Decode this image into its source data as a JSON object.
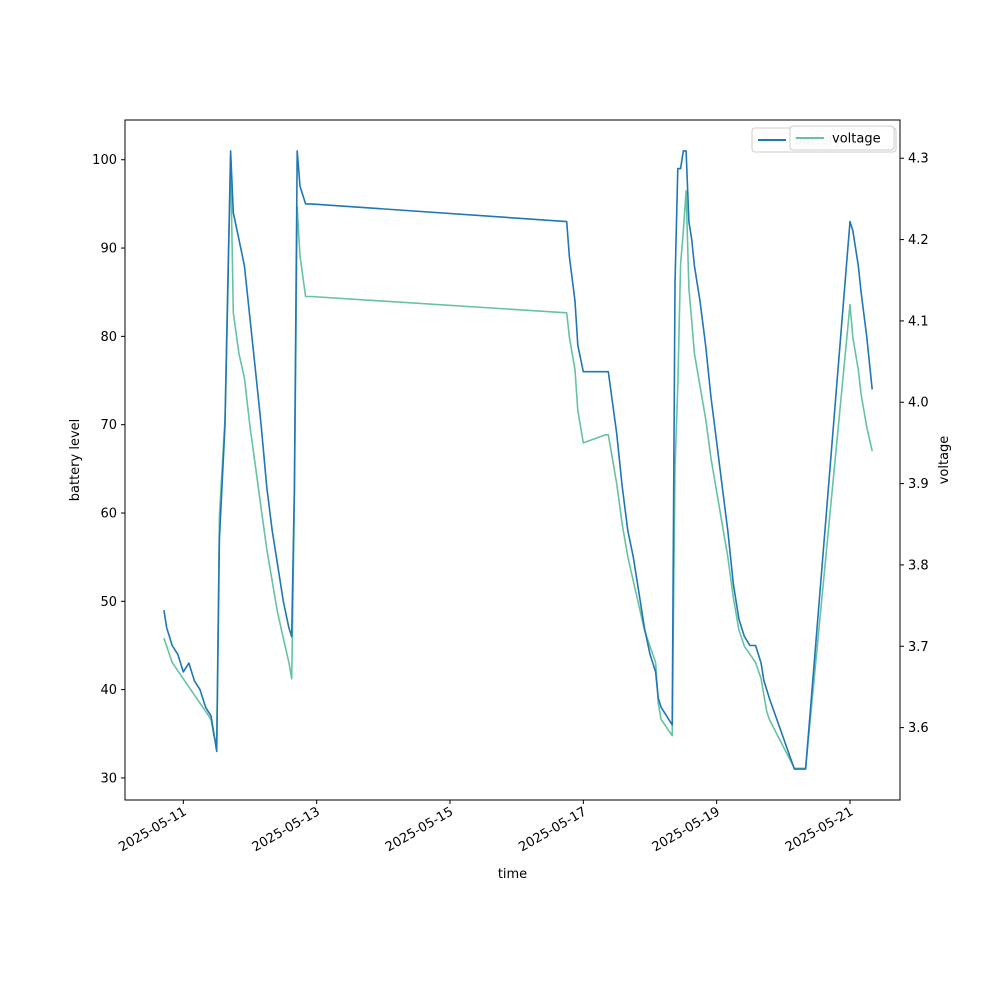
{
  "chart_data": {
    "type": "line",
    "xlabel": "time",
    "ylabel_left": "battery level",
    "ylabel_right": "voltage",
    "xlim": [
      "2025-05-10T03:00",
      "2025-05-21T18:00"
    ],
    "ylim_left": [
      27.5,
      104.5
    ],
    "ylim_right": [
      3.511,
      4.347
    ],
    "x_ticks": [
      "2025-05-11",
      "2025-05-13",
      "2025-05-15",
      "2025-05-17",
      "2025-05-19",
      "2025-05-21"
    ],
    "y_ticks_left": [
      30,
      40,
      50,
      60,
      70,
      80,
      90,
      100
    ],
    "y_ticks_right": [
      3.6,
      3.7,
      3.8,
      3.9,
      4.0,
      4.1,
      4.2,
      4.3
    ],
    "grid": false,
    "legend_placement": "top-right",
    "series": [
      {
        "name": "battery",
        "axis": "left",
        "color": "#1f77b4",
        "x": [
          "2025-05-10T17:00",
          "2025-05-10T18:00",
          "2025-05-10T20:00",
          "2025-05-10T22:00",
          "2025-05-11T00:00",
          "2025-05-11T02:00",
          "2025-05-11T04:00",
          "2025-05-11T06:00",
          "2025-05-11T08:00",
          "2025-05-11T10:00",
          "2025-05-11T11:00",
          "2025-05-11T12:00",
          "2025-05-11T13:00",
          "2025-05-11T15:00",
          "2025-05-11T16:00",
          "2025-05-11T17:00",
          "2025-05-11T18:00",
          "2025-05-11T20:00",
          "2025-05-11T22:00",
          "2025-05-12T00:00",
          "2025-05-12T02:00",
          "2025-05-12T04:00",
          "2025-05-12T06:00",
          "2025-05-12T08:00",
          "2025-05-12T10:00",
          "2025-05-12T12:00",
          "2025-05-12T14:00",
          "2025-05-12T15:00",
          "2025-05-12T16:00",
          "2025-05-12T17:00",
          "2025-05-12T18:00",
          "2025-05-12T20:00",
          "2025-05-12T22:00",
          "2025-05-16T18:00",
          "2025-05-16T19:00",
          "2025-05-16T21:00",
          "2025-05-16T22:00",
          "2025-05-17T00:00",
          "2025-05-17T08:00",
          "2025-05-17T09:00",
          "2025-05-17T12:00",
          "2025-05-17T14:00",
          "2025-05-17T16:00",
          "2025-05-17T18:00",
          "2025-05-17T20:00",
          "2025-05-17T22:00",
          "2025-05-18T00:00",
          "2025-05-18T02:00",
          "2025-05-18T03:00",
          "2025-05-18T04:00",
          "2025-05-18T06:00",
          "2025-05-18T08:00",
          "2025-05-18T09:00",
          "2025-05-18T10:00",
          "2025-05-18T11:00",
          "2025-05-18T12:00",
          "2025-05-18T13:00",
          "2025-05-18T14:00",
          "2025-05-18T15:00",
          "2025-05-18T16:00",
          "2025-05-18T18:00",
          "2025-05-18T20:00",
          "2025-05-18T22:00",
          "2025-05-19T00:00",
          "2025-05-19T02:00",
          "2025-05-19T04:00",
          "2025-05-19T06:00",
          "2025-05-19T08:00",
          "2025-05-19T10:00",
          "2025-05-19T12:00",
          "2025-05-19T14:00",
          "2025-05-19T16:00",
          "2025-05-19T17:00",
          "2025-05-19T18:00",
          "2025-05-19T19:00",
          "2025-05-20T04:00",
          "2025-05-20T08:00",
          "2025-05-21T00:00",
          "2025-05-21T01:00",
          "2025-05-21T03:00",
          "2025-05-21T04:00",
          "2025-05-21T06:00",
          "2025-05-21T08:00"
        ],
        "y": [
          49,
          47,
          45,
          44,
          42,
          43,
          41,
          40,
          38,
          37,
          35,
          33,
          57,
          70,
          85,
          101,
          94,
          91,
          88,
          82,
          76,
          70,
          63,
          58,
          54,
          50,
          47,
          46,
          63,
          101,
          97,
          95,
          95,
          93,
          89,
          84,
          79,
          76,
          76,
          76,
          69,
          63,
          58,
          55,
          51,
          47,
          44,
          42,
          39,
          38,
          37,
          36,
          86,
          99,
          99,
          101,
          101,
          93,
          91,
          88,
          84,
          79,
          73,
          68,
          63,
          58,
          52,
          48,
          46,
          45,
          45,
          43,
          41,
          40,
          39,
          31,
          31,
          93,
          92,
          88,
          85,
          80,
          74
        ]
      },
      {
        "name": "voltage",
        "axis": "right",
        "color": "#66c2a5",
        "x": [
          "2025-05-10T17:00",
          "2025-05-10T18:00",
          "2025-05-10T20:00",
          "2025-05-10T22:00",
          "2025-05-11T00:00",
          "2025-05-11T02:00",
          "2025-05-11T04:00",
          "2025-05-11T06:00",
          "2025-05-11T08:00",
          "2025-05-11T10:00",
          "2025-05-11T11:00",
          "2025-05-11T12:00",
          "2025-05-11T13:00",
          "2025-05-11T15:00",
          "2025-05-11T16:00",
          "2025-05-11T17:00",
          "2025-05-11T18:00",
          "2025-05-11T20:00",
          "2025-05-11T22:00",
          "2025-05-12T00:00",
          "2025-05-12T02:00",
          "2025-05-12T04:00",
          "2025-05-12T06:00",
          "2025-05-12T08:00",
          "2025-05-12T10:00",
          "2025-05-12T12:00",
          "2025-05-12T14:00",
          "2025-05-12T15:00",
          "2025-05-12T16:00",
          "2025-05-12T17:00",
          "2025-05-12T18:00",
          "2025-05-12T20:00",
          "2025-05-12T22:00",
          "2025-05-16T18:00",
          "2025-05-16T19:00",
          "2025-05-16T21:00",
          "2025-05-16T22:00",
          "2025-05-17T00:00",
          "2025-05-17T08:00",
          "2025-05-17T09:00",
          "2025-05-17T12:00",
          "2025-05-17T14:00",
          "2025-05-17T16:00",
          "2025-05-17T18:00",
          "2025-05-17T20:00",
          "2025-05-17T22:00",
          "2025-05-18T00:00",
          "2025-05-18T02:00",
          "2025-05-18T03:00",
          "2025-05-18T04:00",
          "2025-05-18T06:00",
          "2025-05-18T08:00",
          "2025-05-18T09:00",
          "2025-05-18T10:00",
          "2025-05-18T11:00",
          "2025-05-18T12:00",
          "2025-05-18T13:00",
          "2025-05-18T14:00",
          "2025-05-18T15:00",
          "2025-05-18T16:00",
          "2025-05-18T18:00",
          "2025-05-18T20:00",
          "2025-05-18T22:00",
          "2025-05-19T00:00",
          "2025-05-19T02:00",
          "2025-05-19T04:00",
          "2025-05-19T06:00",
          "2025-05-19T08:00",
          "2025-05-19T10:00",
          "2025-05-19T12:00",
          "2025-05-19T14:00",
          "2025-05-19T16:00",
          "2025-05-19T17:00",
          "2025-05-19T18:00",
          "2025-05-19T19:00",
          "2025-05-20T04:00",
          "2025-05-20T08:00",
          "2025-05-21T00:00",
          "2025-05-21T01:00",
          "2025-05-21T03:00",
          "2025-05-21T04:00",
          "2025-05-21T06:00",
          "2025-05-21T08:00"
        ],
        "y": [
          3.71,
          3.7,
          3.68,
          3.67,
          3.66,
          3.65,
          3.64,
          3.63,
          3.62,
          3.61,
          3.59,
          3.58,
          3.86,
          3.98,
          4.15,
          4.3,
          4.11,
          4.06,
          4.03,
          3.97,
          3.92,
          3.87,
          3.82,
          3.78,
          3.74,
          3.71,
          3.68,
          3.66,
          3.88,
          4.24,
          4.18,
          4.13,
          4.13,
          4.11,
          4.08,
          4.04,
          3.99,
          3.95,
          3.96,
          3.96,
          3.9,
          3.85,
          3.81,
          3.78,
          3.75,
          3.72,
          3.7,
          3.68,
          3.63,
          3.61,
          3.6,
          3.59,
          3.92,
          4.02,
          4.17,
          4.21,
          4.26,
          4.14,
          4.1,
          4.06,
          4.02,
          3.98,
          3.93,
          3.89,
          3.85,
          3.81,
          3.76,
          3.72,
          3.7,
          3.69,
          3.68,
          3.66,
          3.64,
          3.62,
          3.61,
          3.55,
          3.55,
          4.12,
          4.08,
          4.04,
          4.01,
          3.97,
          3.94
        ]
      }
    ]
  }
}
